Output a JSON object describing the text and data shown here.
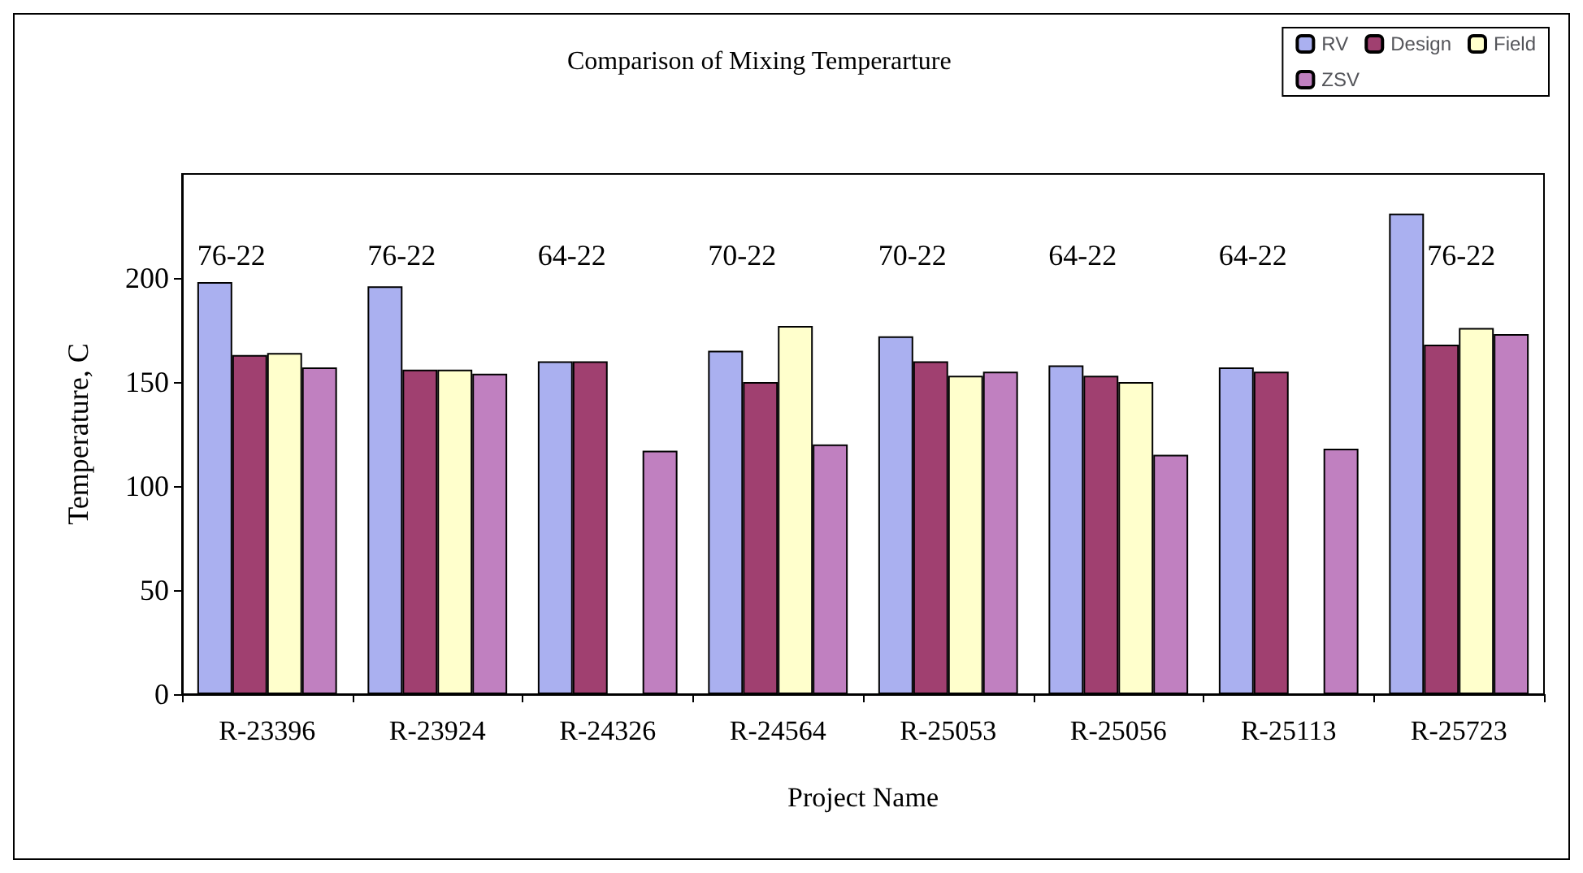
{
  "chart_data": {
    "type": "bar",
    "title": "Comparison of Mixing Temperarture",
    "xlabel": "Project Name",
    "ylabel": "Temperature, C",
    "categories": [
      "R-23396",
      "R-23924",
      "R-24326",
      "R-24564",
      "R-25053",
      "R-25056",
      "R-25113",
      "R-25723"
    ],
    "series": [
      {
        "name": "RV",
        "color": "#aab0f0",
        "values": [
          198,
          196,
          160,
          165,
          172,
          158,
          157,
          231
        ]
      },
      {
        "name": "Design",
        "color": "#a04070",
        "values": [
          163,
          156,
          160,
          150,
          160,
          153,
          155,
          168
        ]
      },
      {
        "name": "Field",
        "color": "#ffffcc",
        "values": [
          164,
          156,
          null,
          177,
          153,
          150,
          null,
          176
        ]
      },
      {
        "name": "ZSV",
        "color": "#c080c0",
        "values": [
          157,
          154,
          117,
          120,
          155,
          115,
          118,
          173
        ]
      }
    ],
    "annotations": [
      "76-22",
      "76-22",
      "64-22",
      "70-22",
      "70-22",
      "64-22",
      "64-22",
      "76-22"
    ],
    "ylim": [
      0,
      250
    ],
    "yticks": [
      0,
      50,
      100,
      150,
      200
    ],
    "grid": false,
    "legend": "top right"
  }
}
